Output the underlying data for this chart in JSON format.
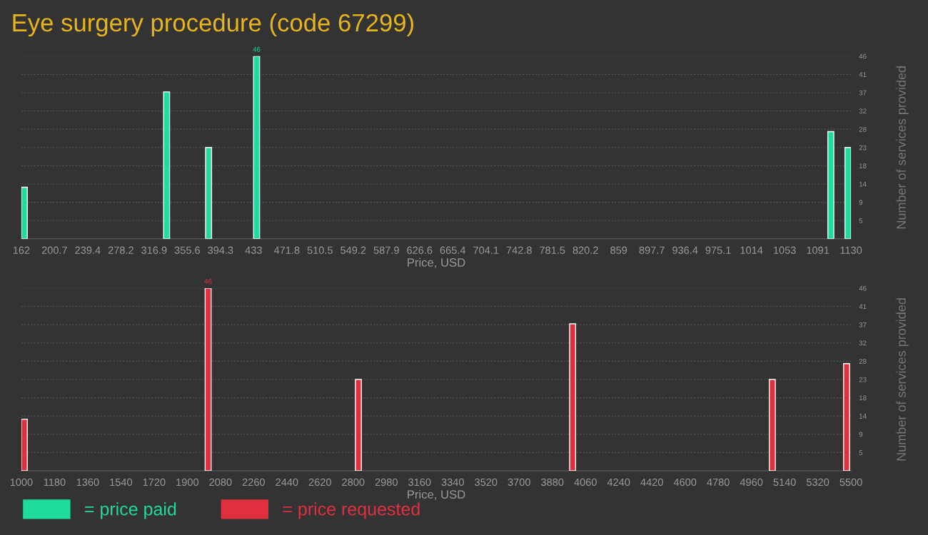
{
  "chart_data": [
    {
      "type": "bar",
      "title": "Eye surgery procedure (code 67299)",
      "xlabel": "Price, USD",
      "ylabel": "Number of services provided",
      "x": [
        162,
        328,
        377,
        433,
        1103,
        1123
      ],
      "series": [
        {
          "name": "= price paid",
          "color": "#1fdc9a",
          "values": [
            13,
            37,
            23,
            46,
            27,
            23
          ],
          "value_labels": [
            null,
            null,
            null,
            "46",
            null,
            null
          ]
        }
      ],
      "xlim": [
        162,
        1130
      ],
      "xticks": [
        {
          "value": 162,
          "label": "162"
        },
        {
          "value": 200.72,
          "label": "200.7"
        },
        {
          "value": 239.44,
          "label": "239.4"
        },
        {
          "value": 278.16,
          "label": "278.2"
        },
        {
          "value": 316.88,
          "label": "316.9"
        },
        {
          "value": 355.6,
          "label": "355.6"
        },
        {
          "value": 394.32,
          "label": "394.3"
        },
        {
          "value": 433.04,
          "label": "433"
        },
        {
          "value": 471.76,
          "label": "471.8"
        },
        {
          "value": 510.48,
          "label": "510.5"
        },
        {
          "value": 549.2,
          "label": "549.2"
        },
        {
          "value": 587.92,
          "label": "587.9"
        },
        {
          "value": 626.64,
          "label": "626.6"
        },
        {
          "value": 665.36,
          "label": "665.4"
        },
        {
          "value": 704.08,
          "label": "704.1"
        },
        {
          "value": 742.8,
          "label": "742.8"
        },
        {
          "value": 781.52,
          "label": "781.5"
        },
        {
          "value": 820.24,
          "label": "820.2"
        },
        {
          "value": 858.96,
          "label": "859"
        },
        {
          "value": 897.68,
          "label": "897.7"
        },
        {
          "value": 936.4,
          "label": "936.4"
        },
        {
          "value": 975.12,
          "label": "975.1"
        },
        {
          "value": 1013.84,
          "label": "1014"
        },
        {
          "value": 1052.56,
          "label": "1053"
        },
        {
          "value": 1091.28,
          "label": "1091"
        },
        {
          "value": 1130,
          "label": "1130"
        }
      ],
      "ylim": [
        0,
        46
      ],
      "yticks": [
        {
          "value": 4.6,
          "label": "5"
        },
        {
          "value": 9.2,
          "label": "9"
        },
        {
          "value": 13.8,
          "label": "14"
        },
        {
          "value": 18.4,
          "label": "18"
        },
        {
          "value": 23,
          "label": "23"
        },
        {
          "value": 27.6,
          "label": "28"
        },
        {
          "value": 32.2,
          "label": "32"
        },
        {
          "value": 36.8,
          "label": "37"
        },
        {
          "value": 41.4,
          "label": "41"
        },
        {
          "value": 46,
          "label": "46"
        }
      ],
      "grid": "y",
      "legend": "bottom left"
    },
    {
      "type": "bar",
      "xlabel": "Price, USD",
      "ylabel": "Number of services provided",
      "x": [
        1000,
        1997,
        2812,
        3974,
        5057,
        5460
      ],
      "series": [
        {
          "name": "= price requested",
          "color": "#e0303f",
          "values": [
            13,
            46,
            23,
            37,
            23,
            27
          ],
          "value_labels": [
            null,
            "46",
            null,
            null,
            null,
            null
          ]
        }
      ],
      "xlim": [
        1000,
        5500
      ],
      "xticks": [
        1000,
        1180,
        1360,
        1540,
        1720,
        1900,
        2080,
        2260,
        2440,
        2620,
        2800,
        2980,
        3160,
        3340,
        3520,
        3700,
        3880,
        4060,
        4240,
        4420,
        4600,
        4780,
        4960,
        5140,
        5320,
        5500
      ],
      "ylim": [
        0,
        46
      ],
      "yticks": [
        {
          "value": 4.6,
          "label": "5"
        },
        {
          "value": 9.2,
          "label": "9"
        },
        {
          "value": 13.8,
          "label": "14"
        },
        {
          "value": 18.4,
          "label": "18"
        },
        {
          "value": 23,
          "label": "23"
        },
        {
          "value": 27.6,
          "label": "28"
        },
        {
          "value": 32.2,
          "label": "32"
        },
        {
          "value": 36.8,
          "label": "37"
        },
        {
          "value": 41.4,
          "label": "41"
        },
        {
          "value": 46,
          "label": "46"
        }
      ],
      "grid": "y",
      "legend": "bottom left"
    }
  ]
}
